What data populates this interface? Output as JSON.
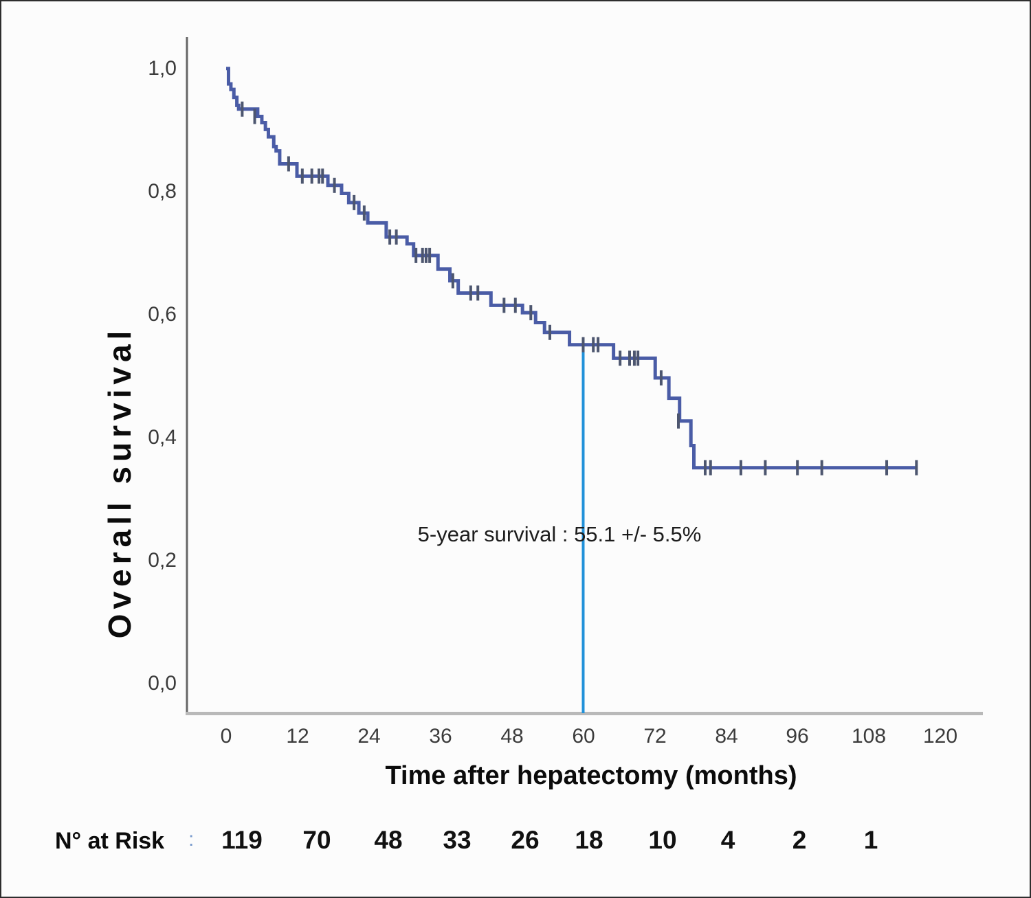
{
  "figure": {
    "background_color": "#fcfcfc",
    "border_color": "#2e2e2e"
  },
  "chart_data": {
    "type": "line",
    "subtype": "kaplan-meier-step-curve",
    "title": "",
    "xlabel": "Time after hepatectomy (months)",
    "ylabel": "Overall survival",
    "xlim": [
      0,
      127
    ],
    "ylim": [
      0,
      1.05
    ],
    "grid": "off",
    "x_ticks": [
      0,
      12,
      24,
      36,
      48,
      60,
      72,
      84,
      96,
      108,
      120
    ],
    "x_tick_labels": [
      "0",
      "12",
      "24",
      "36",
      "48",
      "60",
      "72",
      "84",
      "96",
      "108",
      "120"
    ],
    "y_ticks": [
      1.0,
      0.8,
      0.6,
      0.4,
      0.2,
      0.0
    ],
    "y_tick_labels": [
      "1,0",
      "0,8",
      "0,6",
      "0,4",
      "0,2",
      "0,0"
    ],
    "axis_colors": {
      "x_axis": "#b9b9b9",
      "y_axis": "#666666"
    },
    "series": [
      {
        "name": "Overall survival",
        "color": "#4a5ca6",
        "censor_color": "#4d566f",
        "end_time": 116,
        "steps": [
          [
            0,
            1.0
          ],
          [
            0.4,
            0.975
          ],
          [
            0.8,
            0.966
          ],
          [
            1.3,
            0.953
          ],
          [
            1.8,
            0.94
          ],
          [
            2.1,
            0.934
          ],
          [
            5.3,
            0.922
          ],
          [
            6.0,
            0.912
          ],
          [
            6.6,
            0.901
          ],
          [
            7.1,
            0.889
          ],
          [
            8.0,
            0.873
          ],
          [
            8.4,
            0.866
          ],
          [
            9.0,
            0.845
          ],
          [
            11.9,
            0.825
          ],
          [
            17.1,
            0.81
          ],
          [
            19.4,
            0.797
          ],
          [
            20.6,
            0.782
          ],
          [
            22.3,
            0.765
          ],
          [
            23.8,
            0.749
          ],
          [
            26.9,
            0.726
          ],
          [
            30.4,
            0.715
          ],
          [
            31.5,
            0.696
          ],
          [
            35.6,
            0.674
          ],
          [
            37.6,
            0.655
          ],
          [
            39.0,
            0.635
          ],
          [
            44.5,
            0.615
          ],
          [
            49.8,
            0.603
          ],
          [
            52.0,
            0.587
          ],
          [
            53.5,
            0.571
          ],
          [
            57.7,
            0.551
          ],
          [
            65.1,
            0.529
          ],
          [
            72.1,
            0.497
          ],
          [
            74.4,
            0.464
          ],
          [
            76.2,
            0.427
          ],
          [
            78.1,
            0.387
          ],
          [
            78.6,
            0.351
          ]
        ],
        "censor_marks": [
          [
            2.7,
            0.934
          ],
          [
            4.8,
            0.922
          ],
          [
            10.5,
            0.845
          ],
          [
            12.8,
            0.825
          ],
          [
            14.4,
            0.825
          ],
          [
            15.6,
            0.825
          ],
          [
            16.2,
            0.825
          ],
          [
            18.2,
            0.81
          ],
          [
            21.5,
            0.782
          ],
          [
            23.2,
            0.765
          ],
          [
            27.5,
            0.726
          ],
          [
            28.6,
            0.726
          ],
          [
            31.9,
            0.696
          ],
          [
            33.0,
            0.696
          ],
          [
            33.6,
            0.696
          ],
          [
            34.2,
            0.696
          ],
          [
            38.1,
            0.655
          ],
          [
            41.1,
            0.635
          ],
          [
            42.3,
            0.635
          ],
          [
            46.7,
            0.615
          ],
          [
            48.6,
            0.615
          ],
          [
            51.2,
            0.603
          ],
          [
            54.4,
            0.571
          ],
          [
            60.0,
            0.551
          ],
          [
            61.7,
            0.551
          ],
          [
            62.5,
            0.551
          ],
          [
            66.2,
            0.529
          ],
          [
            67.8,
            0.529
          ],
          [
            68.6,
            0.529
          ],
          [
            69.2,
            0.529
          ],
          [
            73.1,
            0.497
          ],
          [
            76.0,
            0.427
          ],
          [
            80.5,
            0.351
          ],
          [
            81.4,
            0.351
          ],
          [
            86.5,
            0.351
          ],
          [
            90.6,
            0.351
          ],
          [
            96.0,
            0.351
          ],
          [
            100.1,
            0.351
          ],
          [
            111.0,
            0.351
          ],
          [
            116.0,
            0.351
          ]
        ]
      }
    ],
    "reference_line": {
      "x": 60,
      "from_survival": 0.551,
      "color": "#2191d9"
    },
    "annotation": {
      "text": "5-year survival : 55.1 +/- 5.5%"
    },
    "risk_table": {
      "label": "N° at Risk",
      "separator": ":",
      "times": [
        0,
        12,
        24,
        36,
        48,
        60,
        72,
        84,
        96,
        108
      ],
      "values": [
        "119",
        "70",
        "48",
        "33",
        "26",
        "18",
        "10",
        "4",
        "2",
        "1"
      ]
    }
  }
}
